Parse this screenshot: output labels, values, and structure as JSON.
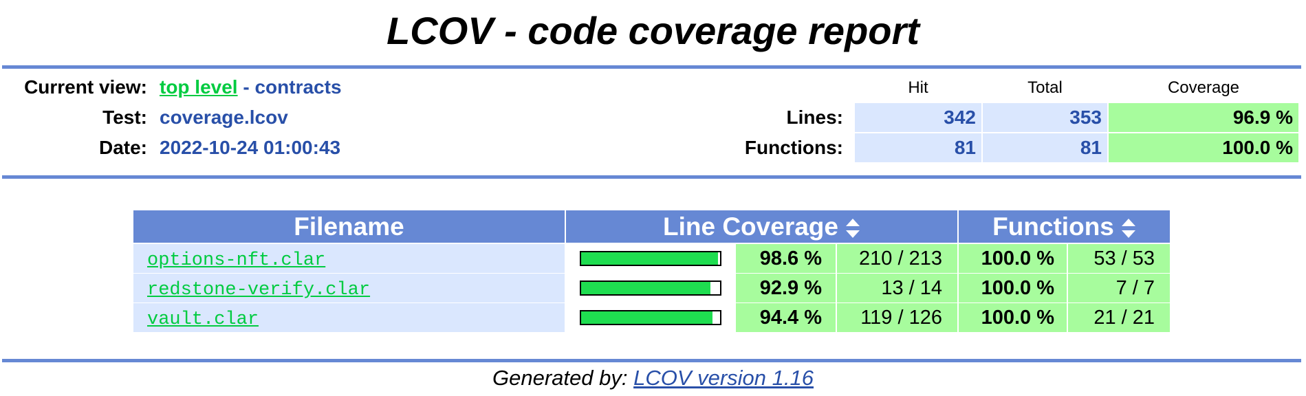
{
  "page_title": "LCOV - code coverage report",
  "header": {
    "current_view_label": "Current view:",
    "current_view_link": "top level",
    "current_view_rest": "- contracts",
    "test_label": "Test:",
    "test_value": "coverage.lcov",
    "date_label": "Date:",
    "date_value": "2022-10-24 01:00:43"
  },
  "summary": {
    "col_hit": "Hit",
    "col_total": "Total",
    "col_coverage": "Coverage",
    "lines": {
      "label": "Lines:",
      "hit": "342",
      "total": "353",
      "coverage": "96.9 %"
    },
    "functions": {
      "label": "Functions:",
      "hit": "81",
      "total": "81",
      "coverage": "100.0 %"
    }
  },
  "table": {
    "headers": {
      "filename": "Filename",
      "line_coverage": "Line Coverage",
      "functions": "Functions"
    },
    "rows": [
      {
        "filename": "options-nft.clar",
        "line_fraction": 0.986,
        "line_pct": "98.6 %",
        "line_ratio": "210 / 213",
        "func_pct": "100.0 %",
        "func_ratio": "53 / 53"
      },
      {
        "filename": "redstone-verify.clar",
        "line_fraction": 0.929,
        "line_pct": "92.9 %",
        "line_ratio": "13 / 14",
        "func_pct": "100.0 %",
        "func_ratio": "7 / 7"
      },
      {
        "filename": "vault.clar",
        "line_fraction": 0.944,
        "line_pct": "94.4 %",
        "line_ratio": "119 / 126",
        "func_pct": "100.0 %",
        "func_ratio": "21 / 21"
      }
    ]
  },
  "footer": {
    "prefix": "Generated by:",
    "link": "LCOV version 1.16"
  },
  "colors": {
    "accent": "#6688d4",
    "value_blue": "#284fa8",
    "link_green": "#00cb40",
    "hit_bg": "#dae7fe",
    "good_bg": "#a7fc9d",
    "bar_fill": "#1fdd50"
  }
}
